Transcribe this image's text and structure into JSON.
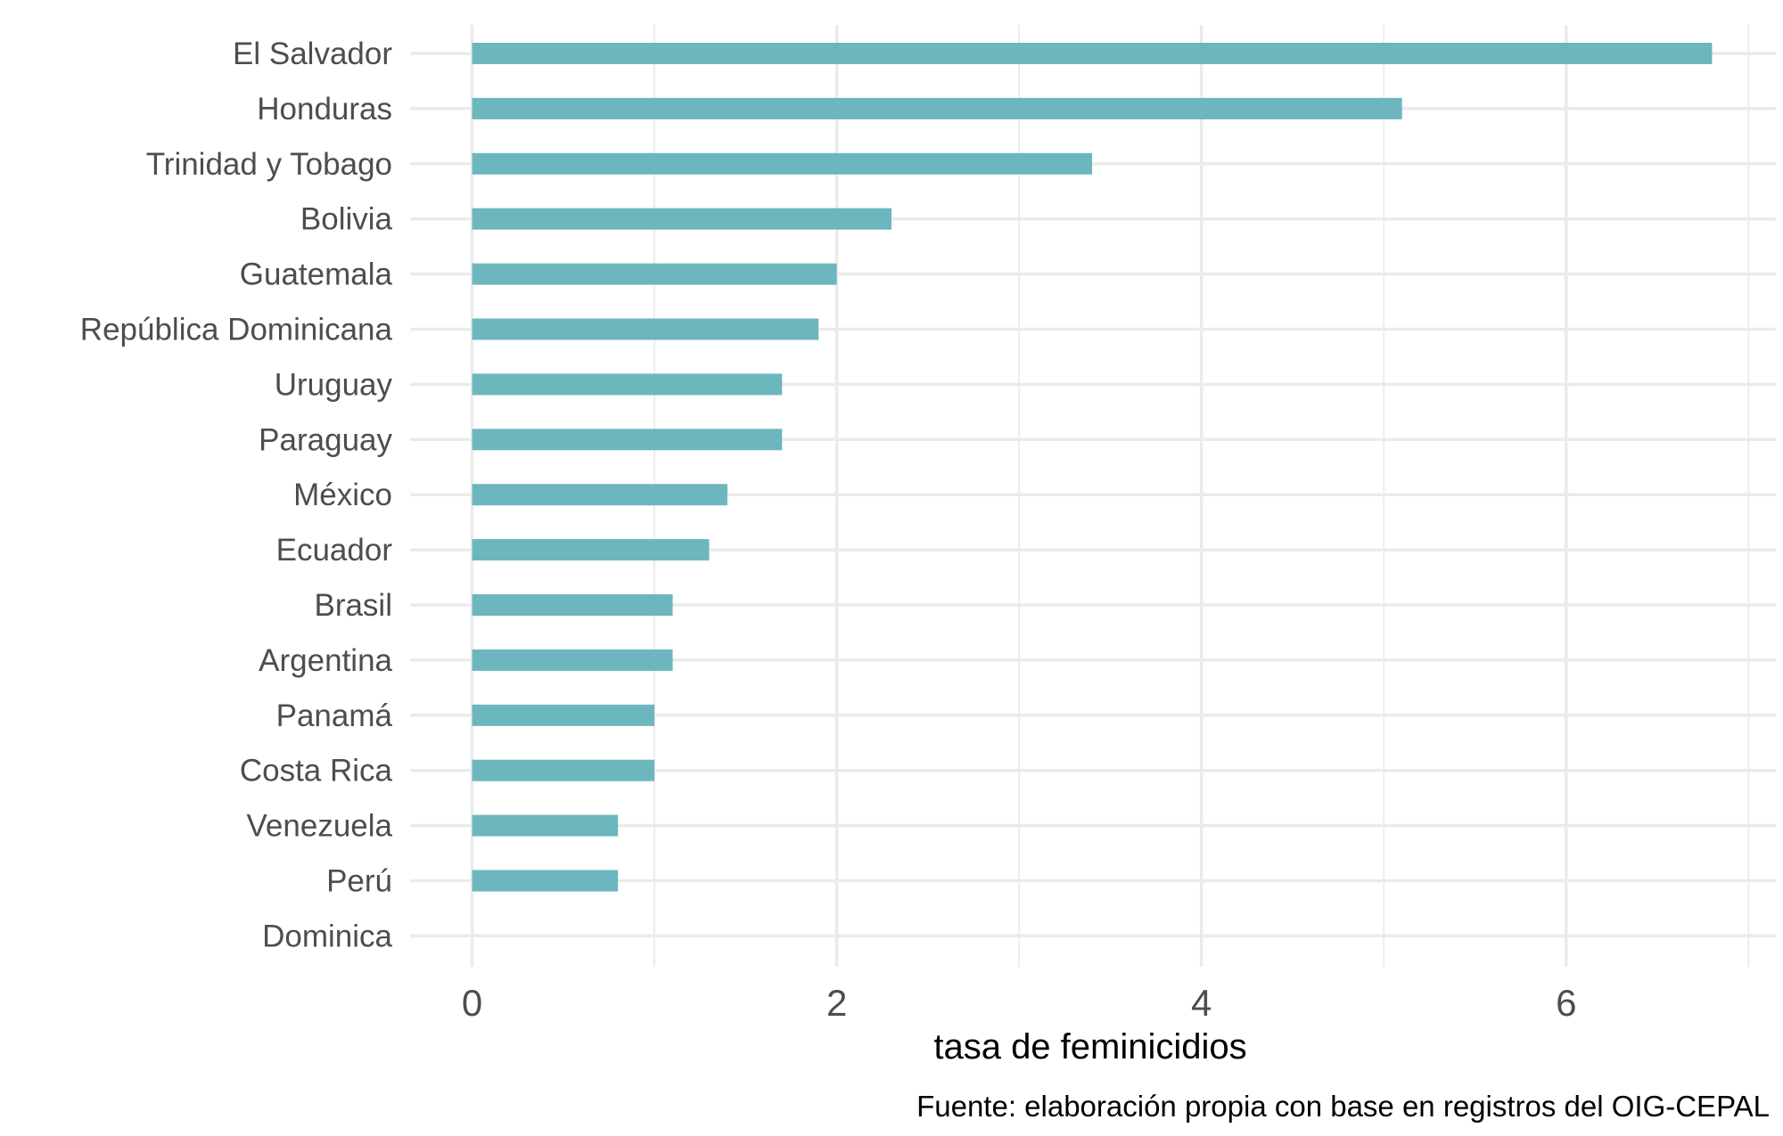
{
  "chart_data": {
    "type": "bar",
    "orientation": "horizontal",
    "categories": [
      "El Salvador",
      "Honduras",
      "Trinidad y Tobago",
      "Bolivia",
      "Guatemala",
      "República Dominicana",
      "Uruguay",
      "Paraguay",
      "México",
      "Ecuador",
      "Brasil",
      "Argentina",
      "Panamá",
      "Costa Rica",
      "Venezuela",
      "Perú",
      "Dominica"
    ],
    "values": [
      6.8,
      5.1,
      3.4,
      2.3,
      2.0,
      1.9,
      1.7,
      1.7,
      1.4,
      1.3,
      1.1,
      1.1,
      1.0,
      1.0,
      0.8,
      0.8,
      0.0
    ],
    "xlabel": "tasa de feminicidios",
    "ylabel": "",
    "xlim": [
      -0.34,
      7.15
    ],
    "x_ticks": [
      0,
      2,
      4,
      6
    ],
    "x_minor_ticks": [
      1,
      3,
      5,
      7
    ],
    "grid": true,
    "bar_color": "#6cb6be",
    "caption": "Fuente: elaboración propia con base en registros del OIG-CEPAL"
  }
}
